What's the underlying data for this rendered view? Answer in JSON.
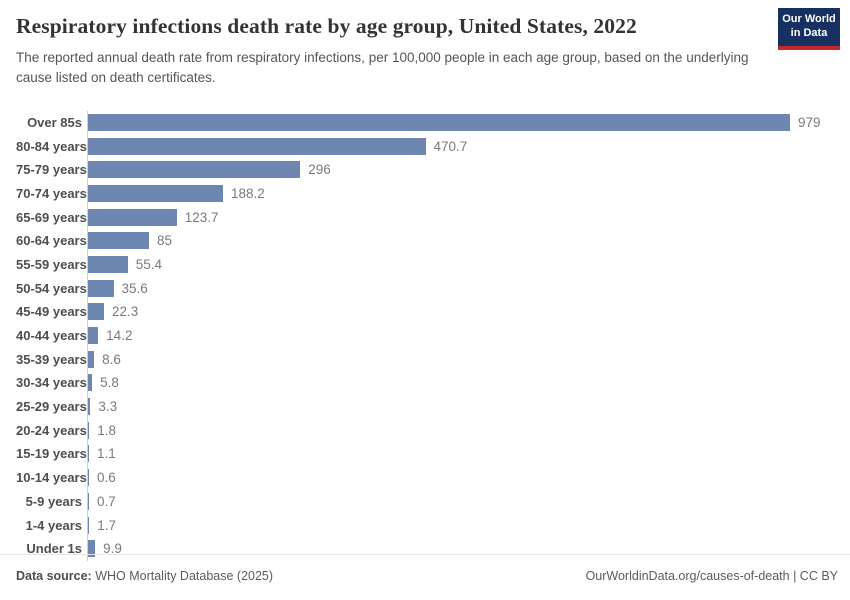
{
  "header": {
    "title": "Respiratory infections death rate by age group, United States, 2022",
    "subtitle": "The reported annual death rate from respiratory infections, per 100,000 people in each age group, based on the underlying cause listed on death certificates.",
    "logo": {
      "line1": "Our World",
      "line2": "in Data"
    }
  },
  "chart_data": {
    "type": "bar",
    "orientation": "horizontal",
    "title": "Respiratory infections death rate by age group, United States, 2022",
    "xlabel": "",
    "ylabel": "",
    "xlim": [
      0,
      979
    ],
    "grid": false,
    "legend": null,
    "bar_color": "#6d87b0",
    "categories": [
      "Over 85s",
      "80-84 years",
      "75-79 years",
      "70-74 years",
      "65-69 years",
      "60-64 years",
      "55-59 years",
      "50-54 years",
      "45-49 years",
      "40-44 years",
      "35-39 years",
      "30-34 years",
      "25-29 years",
      "20-24 years",
      "15-19 years",
      "10-14 years",
      "5-9 years",
      "1-4 years",
      "Under 1s"
    ],
    "values": [
      979,
      470.7,
      296,
      188.2,
      123.7,
      85,
      55.4,
      35.6,
      22.3,
      14.2,
      8.6,
      5.8,
      3.3,
      1.8,
      1.1,
      0.6,
      0.7,
      1.7,
      9.9
    ],
    "value_labels": [
      "979",
      "470.7",
      "296",
      "188.2",
      "123.7",
      "85",
      "55.4",
      "35.6",
      "22.3",
      "14.2",
      "8.6",
      "5.8",
      "3.3",
      "1.8",
      "1.1",
      "0.6",
      "0.7",
      "1.7",
      "9.9"
    ]
  },
  "footer": {
    "source_label": "Data source:",
    "source_text": " WHO Mortality Database (2025)",
    "right_text": "OurWorldinData.org/causes-of-death | CC BY"
  },
  "colors": {
    "bar": "#6d87b0",
    "logo_bg": "#16315f",
    "logo_accent": "#c8262b",
    "title_text": "#333333",
    "subtitle_text": "#555555",
    "axis_line": "#cfcfcf"
  }
}
